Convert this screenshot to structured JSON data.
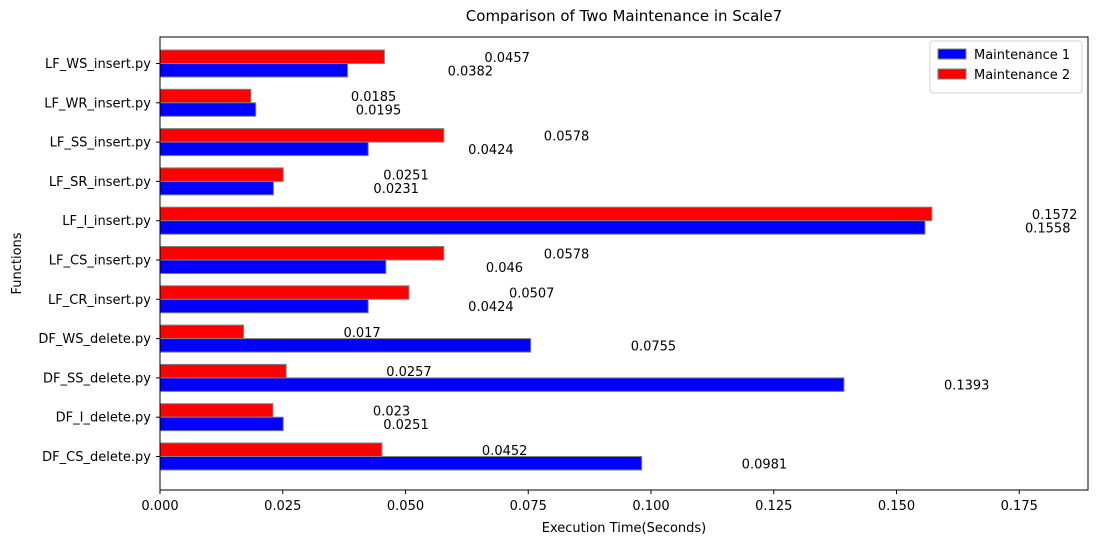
{
  "chart_data": {
    "type": "bar",
    "orientation": "horizontal",
    "title": "Comparison of Two Maintenance in Scale7",
    "xlabel": "Execution Time(Seconds)",
    "ylabel": "Functions",
    "xlim": [
      0,
      0.189
    ],
    "xticks": [
      0.0,
      0.025,
      0.05,
      0.075,
      0.1,
      0.125,
      0.15,
      0.175
    ],
    "xtick_labels": [
      "0.000",
      "0.025",
      "0.050",
      "0.075",
      "0.100",
      "0.125",
      "0.150",
      "0.175"
    ],
    "grid": false,
    "legend_position": "top-right",
    "categories": [
      "LF_WS_insert.py",
      "LF_WR_insert.py",
      "LF_SS_insert.py",
      "LF_SR_insert.py",
      "LF_I_insert.py",
      "LF_CS_insert.py",
      "LF_CR_insert.py",
      "DF_WS_delete.py",
      "DF_SS_delete.py",
      "DF_I_delete.py",
      "DF_CS_delete.py"
    ],
    "series": [
      {
        "name": "Maintenance 1",
        "color": "#0000ff",
        "values": [
          0.0382,
          0.0195,
          0.0424,
          0.0231,
          0.1558,
          0.046,
          0.0424,
          0.0755,
          0.1393,
          0.0251,
          0.0981
        ],
        "labels": [
          "0.0382",
          "0.0195",
          "0.0424",
          "0.0231",
          "0.1558",
          "0.046",
          "0.0424",
          "0.0755",
          "0.1393",
          "0.0251",
          "0.0981"
        ]
      },
      {
        "name": "Maintenance 2",
        "color": "#ff0000",
        "values": [
          0.0457,
          0.0185,
          0.0578,
          0.0251,
          0.1572,
          0.0578,
          0.0507,
          0.017,
          0.0257,
          0.023,
          0.0452
        ],
        "labels": [
          "0.0457",
          "0.0185",
          "0.0578",
          "0.0251",
          "0.1572",
          "0.0578",
          "0.0507",
          "0.017",
          "0.0257",
          "0.023",
          "0.0452"
        ]
      }
    ]
  }
}
